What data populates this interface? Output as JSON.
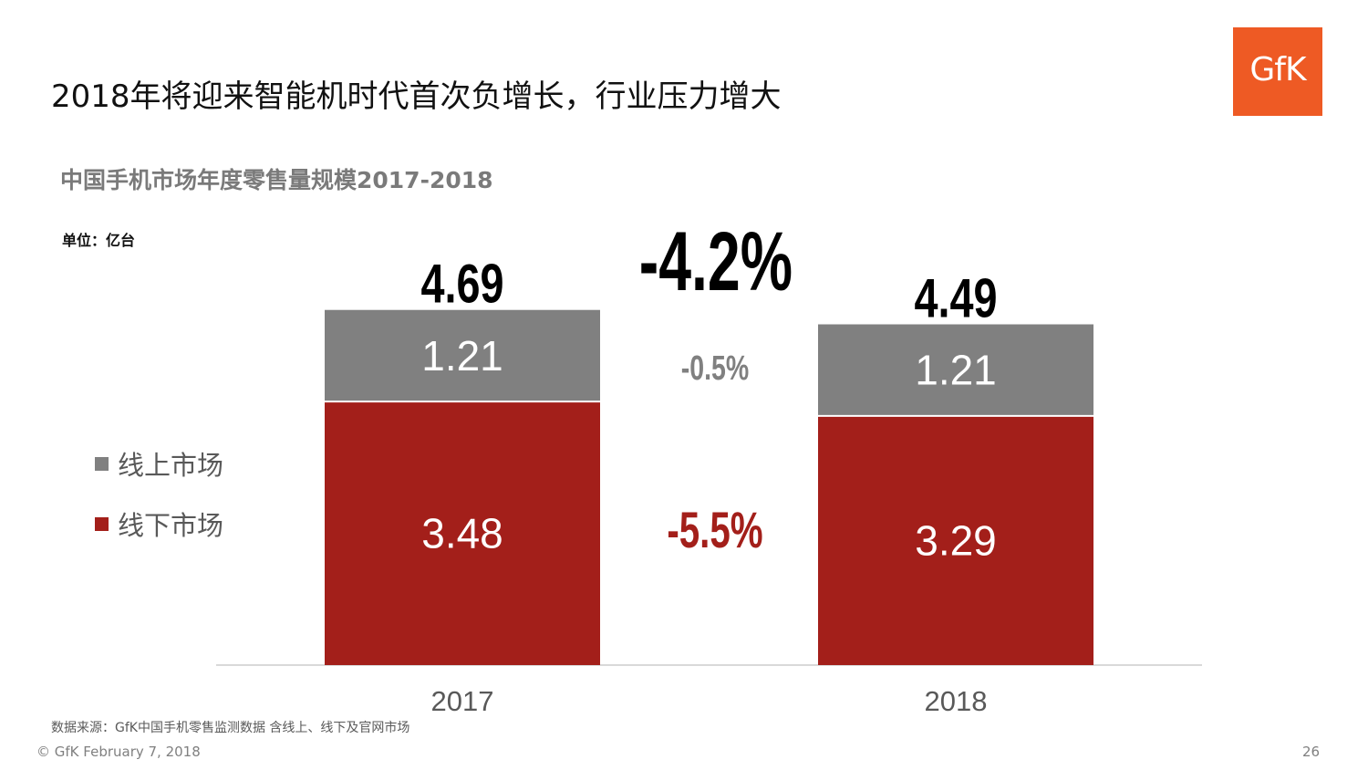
{
  "slide": {
    "title": "2018年将迎来智能机时代首次负增长，行业压力增大",
    "logo_text": "GfK",
    "source": "数据来源：GfK中国手机零售监测数据 含线上、线下及官网市场",
    "footer": "© GfK February 7, 2018",
    "page_number": "26"
  },
  "chart_data": {
    "type": "bar",
    "stacked": true,
    "title": "中国手机市场年度零售量规模2017-2018",
    "unit": "单位：亿台",
    "categories": [
      "2017",
      "2018"
    ],
    "series": [
      {
        "name": "线下市场",
        "values": [
          3.48,
          3.29
        ],
        "color": "#a31f1a",
        "value_labels": [
          "3.48",
          "3.29"
        ]
      },
      {
        "name": "线上市场",
        "values": [
          1.21,
          1.21
        ],
        "color": "#808080",
        "value_labels": [
          "1.21",
          "1.21"
        ]
      }
    ],
    "totals": [
      "4.69",
      "4.49"
    ],
    "growth": {
      "total": "-4.2%",
      "online": "-0.5%",
      "offline": "-5.5%"
    },
    "legend_position": "left",
    "grid": false
  }
}
